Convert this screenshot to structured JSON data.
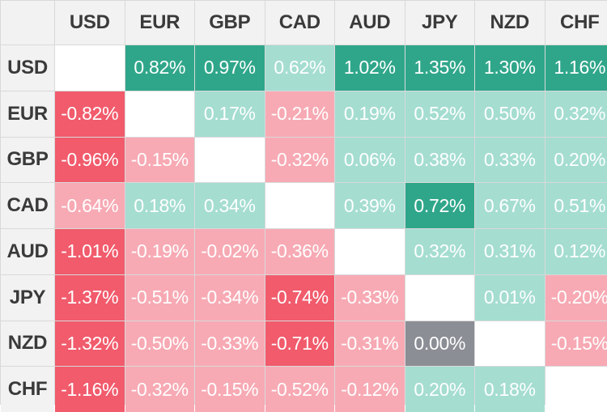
{
  "currencies": [
    "USD",
    "EUR",
    "GBP",
    "CAD",
    "AUD",
    "JPY",
    "NZD",
    "CHF"
  ],
  "colors": {
    "pos_strong": "#2fa68a",
    "pos_light": "#a5ddd1",
    "neg_strong": "#f15b6c",
    "neg_light": "#f7aab4",
    "zero": "#8c8e96",
    "header_bg": "#f2f2f2"
  },
  "matrix": [
    [
      null,
      "0.82%",
      "0.97%",
      "0.62%",
      "1.02%",
      "1.35%",
      "1.30%",
      "1.16%"
    ],
    [
      "-0.82%",
      null,
      "0.17%",
      "-0.21%",
      "0.19%",
      "0.52%",
      "0.50%",
      "0.32%"
    ],
    [
      "-0.96%",
      "-0.15%",
      null,
      "-0.32%",
      "0.06%",
      "0.38%",
      "0.33%",
      "0.20%"
    ],
    [
      "-0.64%",
      "0.18%",
      "0.34%",
      null,
      "0.39%",
      "0.72%",
      "0.67%",
      "0.51%"
    ],
    [
      "-1.01%",
      "-0.19%",
      "-0.02%",
      "-0.36%",
      null,
      "0.32%",
      "0.31%",
      "0.12%"
    ],
    [
      "-1.37%",
      "-0.51%",
      "-0.34%",
      "-0.74%",
      "-0.33%",
      null,
      "0.01%",
      "-0.20%"
    ],
    [
      "-1.32%",
      "-0.50%",
      "-0.33%",
      "-0.71%",
      "-0.31%",
      "0.00%",
      null,
      "-0.15%"
    ],
    [
      "-1.16%",
      "-0.32%",
      "-0.15%",
      "-0.52%",
      "-0.12%",
      "0.20%",
      "0.18%",
      null
    ]
  ],
  "tones": [
    [
      "empty",
      "pos-strong",
      "pos-strong",
      "pos-light",
      "pos-strong",
      "pos-strong",
      "pos-strong",
      "pos-strong"
    ],
    [
      "neg-strong",
      "empty",
      "pos-light",
      "neg-light",
      "pos-light",
      "pos-light",
      "pos-light",
      "pos-light"
    ],
    [
      "neg-strong",
      "neg-light",
      "empty",
      "neg-light",
      "pos-light",
      "pos-light",
      "pos-light",
      "pos-light"
    ],
    [
      "neg-light",
      "pos-light",
      "pos-light",
      "empty",
      "pos-light",
      "pos-strong",
      "pos-light",
      "pos-light"
    ],
    [
      "neg-strong",
      "neg-light",
      "neg-light",
      "neg-light",
      "empty",
      "pos-light",
      "pos-light",
      "pos-light"
    ],
    [
      "neg-strong",
      "neg-light",
      "neg-light",
      "neg-strong",
      "neg-light",
      "empty",
      "pos-light",
      "neg-light"
    ],
    [
      "neg-strong",
      "neg-light",
      "neg-light",
      "neg-strong",
      "neg-light",
      "zero",
      "empty",
      "neg-light"
    ],
    [
      "neg-strong",
      "neg-light",
      "neg-light",
      "neg-light",
      "neg-light",
      "pos-light",
      "pos-light",
      "empty"
    ]
  ]
}
